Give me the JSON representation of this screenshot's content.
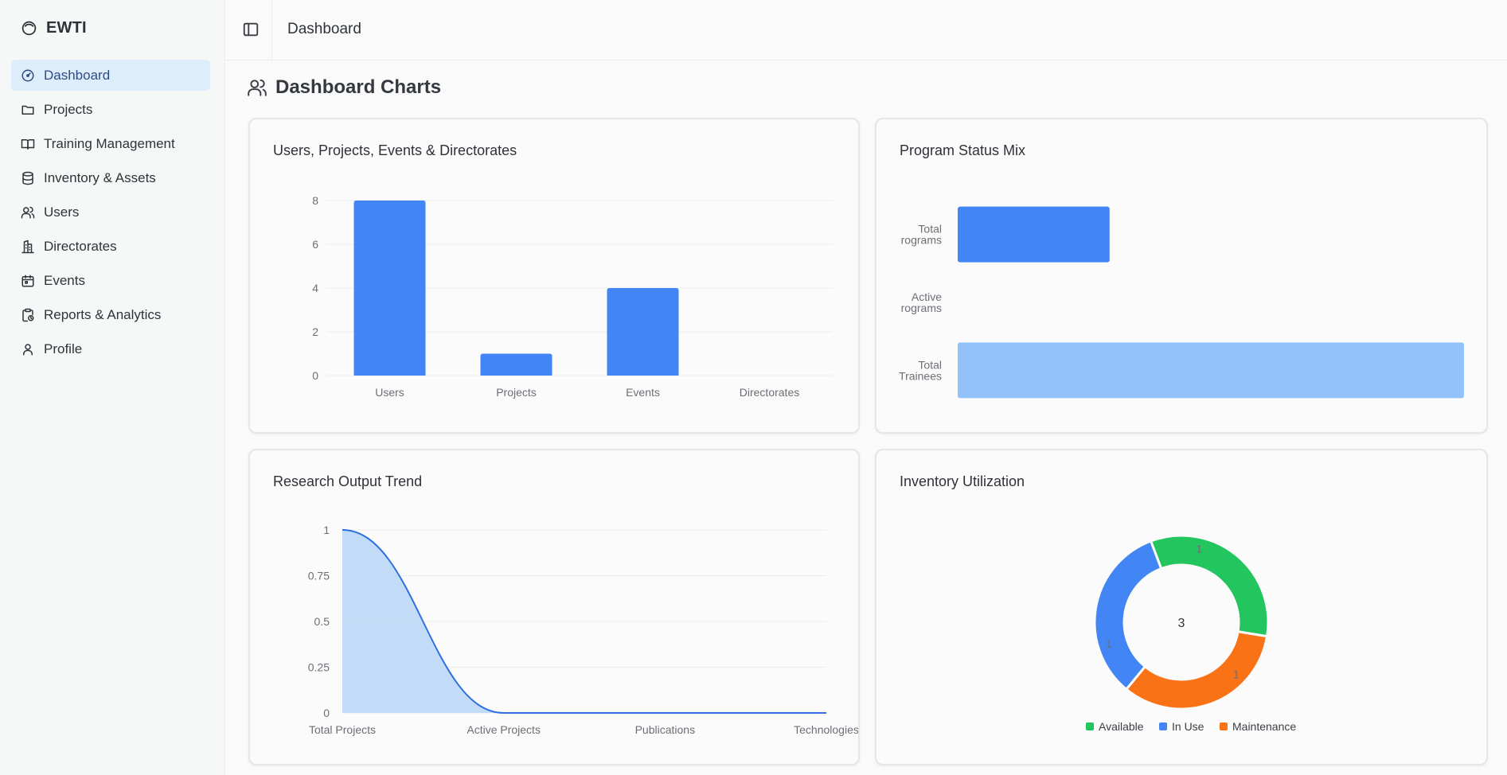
{
  "app": {
    "name": "EWTI"
  },
  "sidebar": {
    "items": [
      {
        "label": "Dashboard",
        "icon": "gauge-icon",
        "active": true
      },
      {
        "label": "Projects",
        "icon": "folder-icon"
      },
      {
        "label": "Training Management",
        "icon": "book-icon"
      },
      {
        "label": "Inventory & Assets",
        "icon": "database-icon"
      },
      {
        "label": "Users",
        "icon": "users-icon"
      },
      {
        "label": "Directorates",
        "icon": "building-icon"
      },
      {
        "label": "Events",
        "icon": "calendar-icon"
      },
      {
        "label": "Reports & Analytics",
        "icon": "clipboard-icon"
      },
      {
        "label": "Profile",
        "icon": "user-icon"
      }
    ]
  },
  "header": {
    "breadcrumb": "Dashboard"
  },
  "page": {
    "title": "Dashboard Charts"
  },
  "colors": {
    "blue": "#4285f4",
    "light_blue": "#93c2fa",
    "green": "#22c55e",
    "orange": "#f97316",
    "area_fill": "#bfdaf7"
  },
  "chart_data": [
    {
      "type": "bar",
      "title": "Users, Projects, Events & Directorates",
      "categories": [
        "Users",
        "Projects",
        "Events",
        "Directorates"
      ],
      "values": [
        8,
        1,
        4,
        0
      ],
      "yticks": [
        "0",
        "2",
        "4",
        "6",
        "8"
      ],
      "ylim": [
        0,
        8
      ],
      "grid": true
    },
    {
      "type": "bar",
      "orientation": "horizontal",
      "title": "Program Status Mix",
      "categories": [
        [
          "Total",
          "rograms"
        ],
        [
          "Active",
          "rograms"
        ],
        [
          "Total",
          "Trainees"
        ]
      ],
      "values": [
        3,
        0,
        10
      ],
      "xlim": [
        0,
        10
      ]
    },
    {
      "type": "area",
      "title": "Research Output Trend",
      "categories": [
        "Total Projects",
        "Active Projects",
        "Publications",
        "Technologies"
      ],
      "values": [
        1,
        0,
        0,
        0
      ],
      "yticks": [
        "0",
        "0.25",
        "0.5",
        "0.75",
        "1"
      ],
      "ylim": [
        0,
        1
      ],
      "grid": true
    },
    {
      "type": "pie",
      "style": "doughnut",
      "title": "Inventory Utilization",
      "labels": [
        "Available",
        "In Use",
        "Maintenance"
      ],
      "values": [
        1,
        1,
        1
      ],
      "slice_labels": [
        "1",
        "1",
        "1"
      ],
      "center_label": "3",
      "legend": "bottom"
    }
  ]
}
